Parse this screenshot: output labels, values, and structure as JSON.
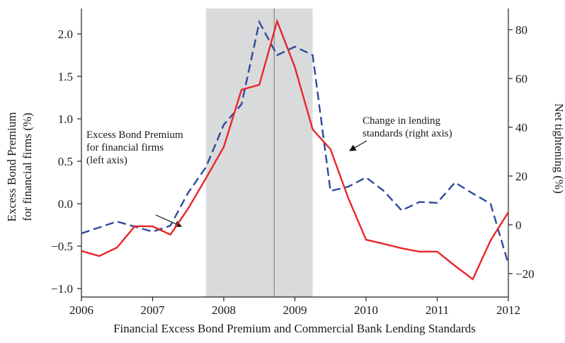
{
  "chart_data": {
    "type": "line",
    "title": "Financial Excess Bond Premium and Commercial Bank Lending Standards",
    "ylabel": [
      "Excess Bond Premium",
      "for financial firms (%)"
    ],
    "y2label": "Net tightening (%)",
    "x": [
      2006,
      2006.25,
      2006.5,
      2006.75,
      2007,
      2007.25,
      2007.5,
      2007.75,
      2008,
      2008.25,
      2008.5,
      2008.75,
      2009,
      2009.25,
      2009.5,
      2009.75,
      2010,
      2010.25,
      2010.5,
      2010.75,
      2011,
      2011.25,
      2011.5,
      2011.75,
      2012
    ],
    "series": [
      {
        "name": "Excess Bond Premium for financial firms",
        "color": "#2e4a9a",
        "dashed": true,
        "values": [
          -0.35,
          -0.28,
          -0.21,
          -0.27,
          -0.33,
          -0.26,
          0.13,
          0.43,
          0.93,
          1.17,
          2.14,
          1.75,
          1.85,
          1.75,
          0.15,
          0.2,
          0.31,
          0.15,
          -0.08,
          0.02,
          0.01,
          0.25,
          0.12,
          0.0,
          -0.71
        ]
      },
      {
        "name": "Change in lending standards",
        "color": "#e8262a",
        "axis": "y2",
        "values": [
          -10.7,
          -12.8,
          -9.3,
          -0.6,
          -0.6,
          -4,
          6.7,
          19.1,
          31.9,
          55.4,
          57.4,
          83.5,
          64.6,
          39.1,
          31,
          11,
          -6.1,
          -7.8,
          -9.6,
          -11,
          -11,
          -16.8,
          -22.3,
          -6.4,
          5.2
        ]
      }
    ],
    "annotations": [
      [
        "Excess Bond Premium",
        "for financial firms",
        "(left axis)"
      ],
      [
        "Change in lending",
        "standards (right axis)"
      ]
    ],
    "shade": [
      2007.75,
      2009.25
    ],
    "vline": 2008.71,
    "xlim": [
      2006,
      2012
    ],
    "xticks": [
      2006,
      2007,
      2008,
      2009,
      2010,
      2011,
      2012
    ],
    "ylim": [
      -1.1,
      2.3
    ],
    "yticks": [
      {
        "value": -1,
        "label": "−1.0"
      },
      {
        "value": -0.5,
        "label": "−0.5"
      },
      {
        "value": 0,
        "label": "0.0"
      },
      {
        "value": 0.5,
        "label": "0.5"
      },
      {
        "value": 1,
        "label": "1.0"
      },
      {
        "value": 1.5,
        "label": "1.5"
      },
      {
        "value": 2,
        "label": "2.0"
      }
    ],
    "y2lim": [
      -29.6,
      88.7
    ],
    "y2ticks": [
      {
        "value": -20,
        "label": "−20"
      },
      0,
      20,
      40,
      60,
      80
    ]
  }
}
